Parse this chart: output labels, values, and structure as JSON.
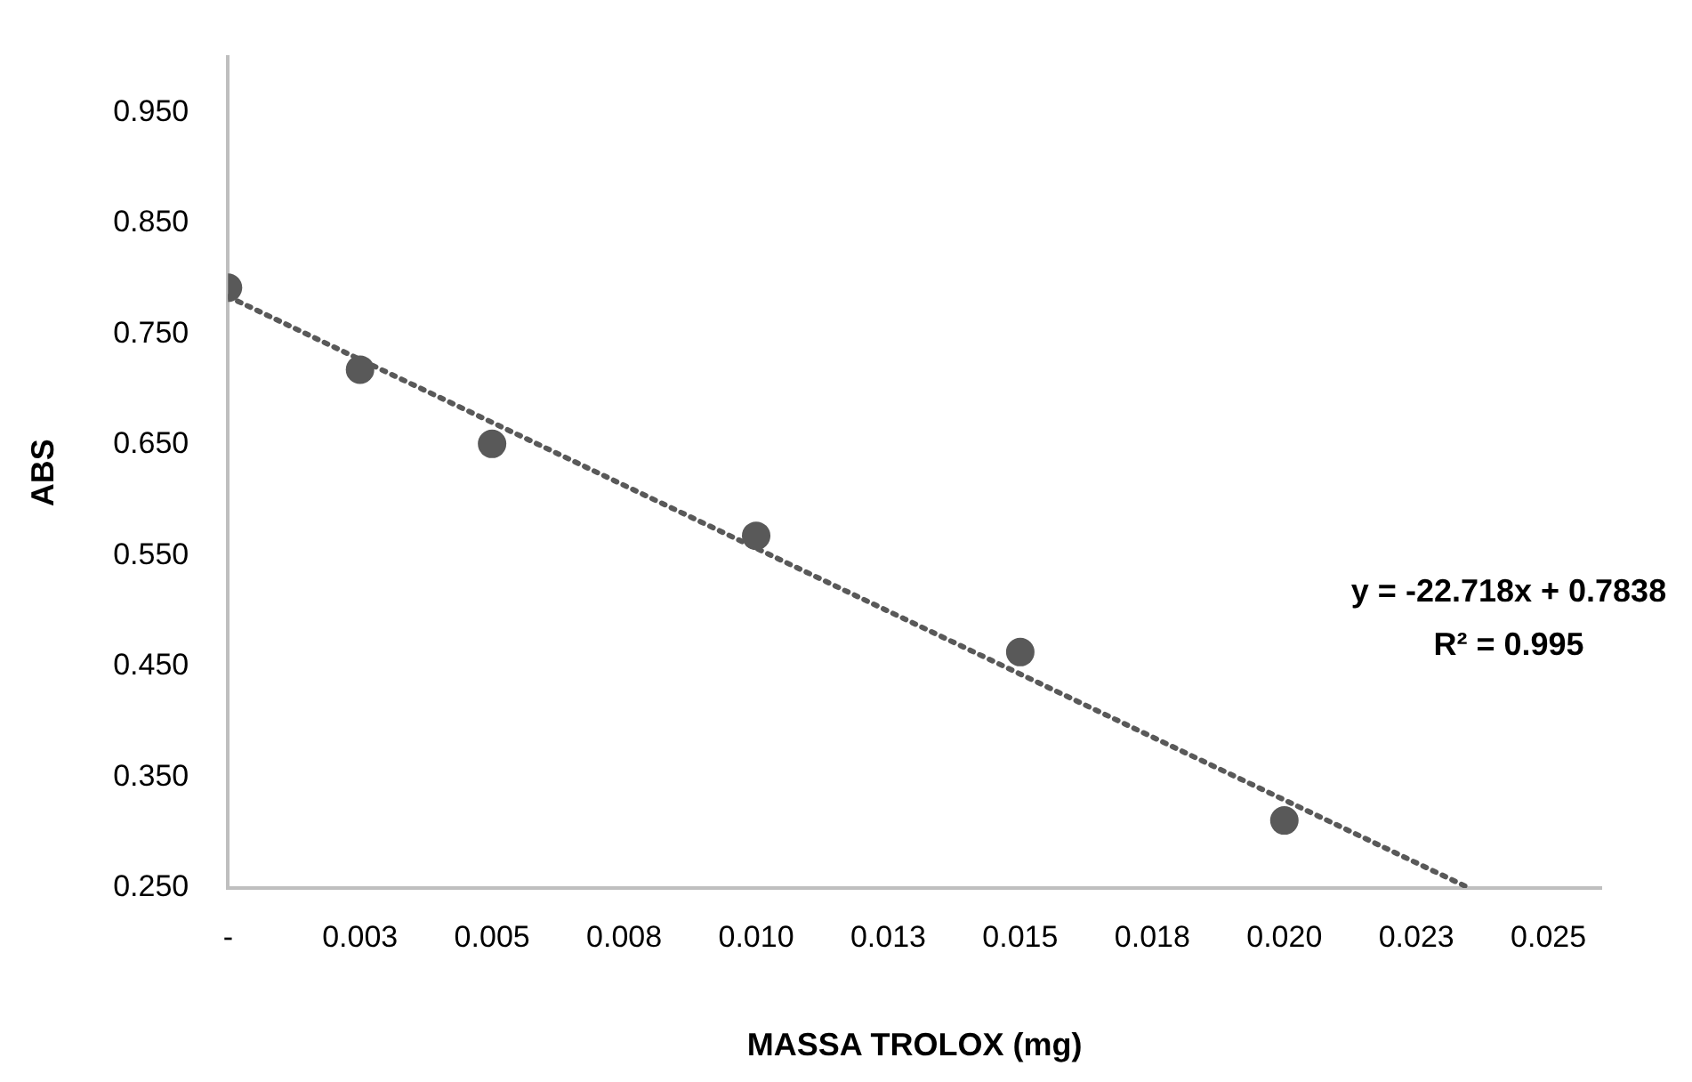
{
  "chart_data": {
    "type": "scatter",
    "xlabel": "MASSA TROLOX (mg)",
    "ylabel": "ABS",
    "xlim": [
      0,
      0.026
    ],
    "ylim": [
      0.25,
      1.0
    ],
    "xticks": [
      {
        "value": 0,
        "label": "-"
      },
      {
        "value": 0.0025,
        "label": "0.003"
      },
      {
        "value": 0.005,
        "label": "0.005"
      },
      {
        "value": 0.0075,
        "label": "0.008"
      },
      {
        "value": 0.01,
        "label": "0.010"
      },
      {
        "value": 0.0125,
        "label": "0.013"
      },
      {
        "value": 0.015,
        "label": "0.015"
      },
      {
        "value": 0.0175,
        "label": "0.018"
      },
      {
        "value": 0.02,
        "label": "0.020"
      },
      {
        "value": 0.0225,
        "label": "0.023"
      },
      {
        "value": 0.025,
        "label": "0.025"
      }
    ],
    "yticks": [
      {
        "value": 0.25,
        "label": "0.250"
      },
      {
        "value": 0.35,
        "label": "0.350"
      },
      {
        "value": 0.45,
        "label": "0.450"
      },
      {
        "value": 0.55,
        "label": "0.550"
      },
      {
        "value": 0.65,
        "label": "0.650"
      },
      {
        "value": 0.75,
        "label": "0.750"
      },
      {
        "value": 0.85,
        "label": "0.850"
      },
      {
        "value": 0.95,
        "label": "0.950"
      }
    ],
    "series": [
      {
        "type": "scatter",
        "color": "#595959",
        "marker": "circle",
        "x": [
          0,
          0.0025,
          0.005,
          0.01,
          0.015,
          0.02
        ],
        "values": [
          0.792,
          0.718,
          0.651,
          0.568,
          0.463,
          0.311
        ]
      },
      {
        "type": "line",
        "color": "#595959",
        "marker": "none",
        "line_style": "dotted",
        "x": [
          0,
          0.0235
        ],
        "values": [
          0.784,
          0.25
        ]
      }
    ],
    "annotations": [
      "y = -22.718x + 0.7838",
      "R² = 0.995"
    ],
    "grid": false,
    "legend": false
  }
}
